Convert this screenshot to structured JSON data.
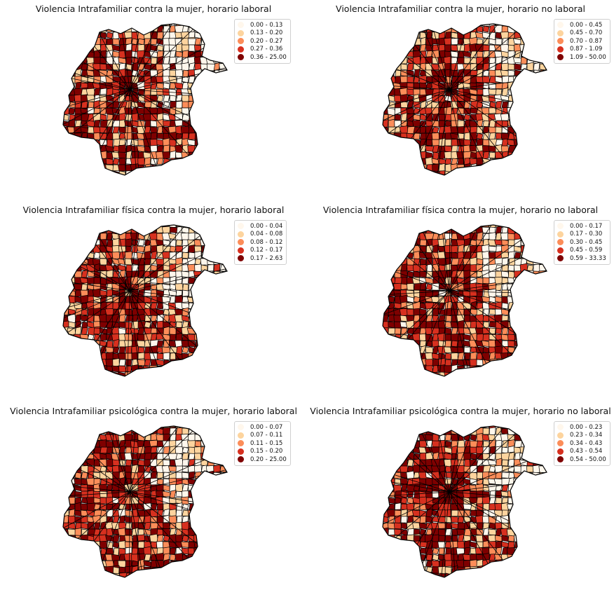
{
  "palette": [
    "#fff7ec",
    "#fdd49e",
    "#fc8d59",
    "#d7301f",
    "#7f0000"
  ],
  "panels": [
    {
      "title": "Violencia Intrafamiliar contra la mujer, horario laboral",
      "legend": [
        "0.00 - 0.13",
        "0.13 - 0.20",
        "0.20 - 0.27",
        "0.27 - 0.36",
        "0.36 - 25.00"
      ]
    },
    {
      "title": "Violencia Intrafamiliar contra la mujer, horario no laboral",
      "legend": [
        "0.00 - 0.45",
        "0.45 - 0.70",
        "0.70 - 0.87",
        "0.87 - 1.09",
        "1.09 - 50.00"
      ]
    },
    {
      "title": "Violencia Intrafamiliar física contra la mujer, horario laboral",
      "legend": [
        "0.00 - 0.04",
        "0.04 - 0.08",
        "0.08 - 0.12",
        "0.12 - 0.17",
        "0.17 - 2.63"
      ]
    },
    {
      "title": "Violencia Intrafamiliar física contra la mujer, horario no laboral",
      "legend": [
        "0.00 - 0.17",
        "0.17 - 0.30",
        "0.30 - 0.45",
        "0.45 - 0.59",
        "0.59 - 33.33"
      ]
    },
    {
      "title": "Violencia Intrafamiliar psicológica contra la mujer, horario laboral",
      "legend": [
        "0.00 - 0.07",
        "0.07 - 0.11",
        "0.11 - 0.15",
        "0.15 - 0.20",
        "0.20 - 25.00"
      ]
    },
    {
      "title": "Violencia Intrafamiliar psicológica contra la mujer, horario no laboral",
      "legend": [
        "0.00 - 0.23",
        "0.23 - 0.34",
        "0.34 - 0.43",
        "0.43 - 0.54",
        "0.54 - 50.00"
      ]
    }
  ]
}
